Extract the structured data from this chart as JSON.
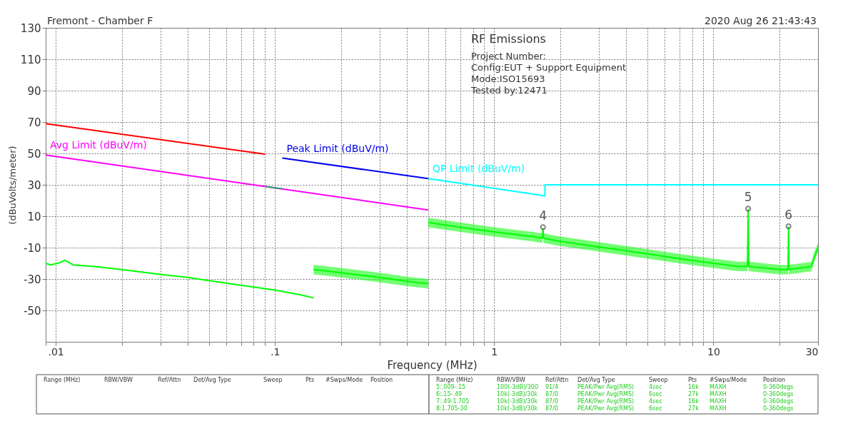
{
  "chart_data": {
    "type": "line",
    "xlabel": "Frequency (MHz)",
    "ylabel": "(dBuVolts/meter)",
    "log": "x",
    "grid": true,
    "line_style": "solid",
    "xlim": [
      0.009,
      30
    ],
    "ylim": [
      -70,
      130
    ],
    "xticks": [
      {
        "value": 0.009,
        "label": null
      },
      {
        "value": 0.01,
        "label": ".01"
      },
      {
        "value": 0.02,
        "label": null
      },
      {
        "value": 0.03,
        "label": null
      },
      {
        "value": 0.04,
        "label": null
      },
      {
        "value": 0.05,
        "label": null
      },
      {
        "value": 0.06,
        "label": null
      },
      {
        "value": 0.07,
        "label": null
      },
      {
        "value": 0.08,
        "label": null
      },
      {
        "value": 0.09,
        "label": null
      },
      {
        "value": 0.1,
        "label": ".1"
      },
      {
        "value": 0.2,
        "label": null
      },
      {
        "value": 0.3,
        "label": null
      },
      {
        "value": 0.4,
        "label": null
      },
      {
        "value": 0.5,
        "label": null
      },
      {
        "value": 0.6,
        "label": null
      },
      {
        "value": 0.7,
        "label": null
      },
      {
        "value": 0.8,
        "label": null
      },
      {
        "value": 0.9,
        "label": null
      },
      1,
      {
        "value": 2,
        "label": null
      },
      {
        "value": 3,
        "label": null
      },
      {
        "value": 4,
        "label": null
      },
      {
        "value": 5,
        "label": null
      },
      {
        "value": 6,
        "label": null
      },
      {
        "value": 7,
        "label": null
      },
      {
        "value": 8,
        "label": null
      },
      {
        "value": 9,
        "label": null
      },
      10,
      {
        "value": 20,
        "label": null
      },
      30
    ],
    "yticks": [
      -50,
      -30,
      -10,
      10,
      30,
      50,
      70,
      90,
      110,
      130
    ],
    "series": [
      {
        "color": "#ff0000",
        "x": [
          0.009,
          0.09
        ],
        "values": [
          69,
          49.5
        ]
      },
      {
        "name": "Peak Limit (dBuV/m)",
        "color": "#0000ee",
        "x": [
          0.108,
          0.5
        ],
        "values": [
          47,
          34
        ]
      },
      {
        "name": "QP Limit (dBuV/m)",
        "color": "#00ffff",
        "x": [
          0.5,
          1.705,
          1.705,
          30
        ],
        "values": [
          34,
          23,
          30,
          30
        ]
      },
      {
        "name": "Avg Limit (dBuV/m)",
        "color": "#ff00ff",
        "x": [
          0.009,
          0.5
        ],
        "values": [
          49,
          14
        ]
      },
      {
        "color": "#2e9e6e",
        "x": [
          0.09,
          0.108
        ],
        "values": [
          29,
          27.5
        ]
      },
      {
        "color": "#00ff00",
        "x": [
          0.009,
          0.0095,
          0.0105,
          0.011,
          0.012,
          0.015,
          0.02,
          0.03,
          0.04,
          0.05,
          0.07,
          0.1,
          0.13,
          0.15
        ],
        "values": [
          -20,
          -21,
          -19.5,
          -18,
          -21,
          -22,
          -24,
          -27,
          -29,
          -31,
          -34,
          -37,
          -40,
          -42
        ]
      },
      {
        "color": "#00ff00",
        "x": [
          0.15,
          0.2,
          0.3,
          0.4,
          0.5
        ],
        "values": [
          -24,
          -26,
          -29,
          -31.5,
          -33
        ],
        "lower": [
          -27,
          -29,
          -32,
          -34.5,
          -36
        ],
        "upper": [
          -21,
          -23,
          -26,
          -28.5,
          -30
        ]
      },
      {
        "color": "#00ff00",
        "x": [
          0.5,
          0.7,
          1,
          1.5,
          1.66,
          1.67,
          1.68,
          2,
          3,
          5,
          7,
          10,
          13,
          14.3,
          14.4,
          14.5,
          20,
          21.9,
          22,
          22.1,
          25,
          28,
          29,
          30
        ],
        "values": [
          6,
          3,
          0,
          -3,
          -4,
          2,
          -4,
          -6,
          -9.5,
          -14,
          -17,
          -20,
          -22,
          -22,
          14,
          -22,
          -24,
          -24,
          3,
          -24,
          -23,
          -22,
          -15,
          -10
        ],
        "lower": [
          3,
          0,
          -3,
          -6,
          -7,
          2,
          -7,
          -9,
          -12.5,
          -17,
          -20,
          -23,
          -25,
          -25,
          14,
          -25,
          -27,
          -27,
          3,
          -27,
          -26,
          -25,
          -18,
          -13
        ],
        "upper": [
          9,
          6,
          3,
          0,
          -1,
          2,
          -1,
          -3,
          -6.5,
          -11,
          -14,
          -17,
          -19,
          -19,
          14,
          -19,
          -21,
          -21,
          3,
          -21,
          -20,
          -19,
          -12,
          -7
        ]
      }
    ],
    "annotations": [
      "Fremont - Chamber F",
      "2020 Aug 26   21:43:43",
      "RF Emissions",
      "Project Number:",
      "Config:EUT + Support Equipment",
      "Mode:ISO15693",
      "Tested by:12471",
      "Range (MHz)",
      "RBW/VBW",
      "Ref/Attn",
      "Det/Avg Type",
      "Sweep",
      "Pts",
      "#Swps/Mode",
      "Position",
      "Range (MHz)",
      "RBW/VBW",
      "Ref/Attn",
      "Det/Avg Type",
      "Sweep",
      "Pts",
      "#Swps/Mode",
      "Position",
      "5:.009-.15",
      "100(-3dB)/300",
      "91/4",
      "PEAK/Pwr Avg(RMS)",
      "4sec",
      "16k",
      "MAXH",
      "0-360degs",
      "6:.15-.49",
      "10k(-3dB)/30k",
      "87/0",
      "PEAK/Pwr Avg(RMS)",
      "6sec",
      "27k",
      "MAXH",
      "0-360degs",
      "7:.49-1.705",
      "10k(-3dB)/30k",
      "87/0",
      "PEAK/Pwr Avg(RMS)",
      "4sec",
      "16k",
      "MAXH",
      "0-360degs",
      "8:1.705-30",
      "10k(-3dB)/30k",
      "87/0",
      "PEAK/Pwr Avg(RMS)",
      "6sec",
      "27k",
      "MAXH",
      "0-360degs",
      {
        "text": "4",
        "x": 1.67,
        "y": 3
      },
      {
        "text": "5",
        "x": 14.4,
        "y": 14.8
      },
      {
        "text": "6",
        "x": 22,
        "y": 3.6
      }
    ]
  }
}
